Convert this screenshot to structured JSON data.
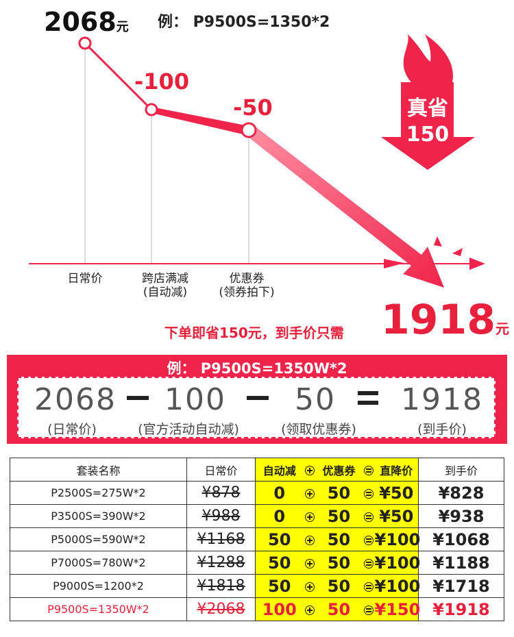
{
  "header": {
    "price": "2068",
    "price_unit": "元",
    "example": "例： P9500S=1350*2"
  },
  "steps": [
    {
      "label": "日常价"
    },
    {
      "label": "跨店满减",
      "sub": "(自动减)",
      "change": "-100"
    },
    {
      "label": "优惠券",
      "sub": "(领券拍下)",
      "change": "-50"
    }
  ],
  "badge": {
    "line1": "真省",
    "line2": "150"
  },
  "final": {
    "text": "下单即省150元，到手价只需",
    "price": "1918",
    "unit": "元"
  },
  "formula": {
    "title": "例： P9500S=1350W*2",
    "terms": [
      {
        "value": "2068",
        "note": "(日常价)"
      },
      {
        "value": "100",
        "note": "(官方活动自动减)"
      },
      {
        "value": "50",
        "note": "(领取优惠券)"
      },
      {
        "value": "1918",
        "note": "(到手价)"
      }
    ]
  },
  "table": {
    "header": [
      "套装名称",
      "日常价",
      "自动减",
      "优惠券",
      "直降价",
      "到手价"
    ],
    "rows": [
      [
        "P2500S=275W*2",
        "¥878",
        "0",
        "50",
        "¥50",
        "¥828"
      ],
      [
        "P3500S=390W*2",
        "¥988",
        "0",
        "50",
        "¥50",
        "¥938"
      ],
      [
        "P5000S=590W*2",
        "¥1168",
        "50",
        "50",
        "¥100",
        "¥1068"
      ],
      [
        "P7000S=780W*2",
        "¥1288",
        "50",
        "50",
        "¥100",
        "¥1188"
      ],
      [
        "P9000S=1200*2",
        "¥1818",
        "50",
        "50",
        "¥100",
        "¥1718"
      ],
      [
        "P9500S=1350W*2",
        "¥2068",
        "100",
        "50",
        "¥150",
        "¥1918"
      ]
    ]
  }
}
